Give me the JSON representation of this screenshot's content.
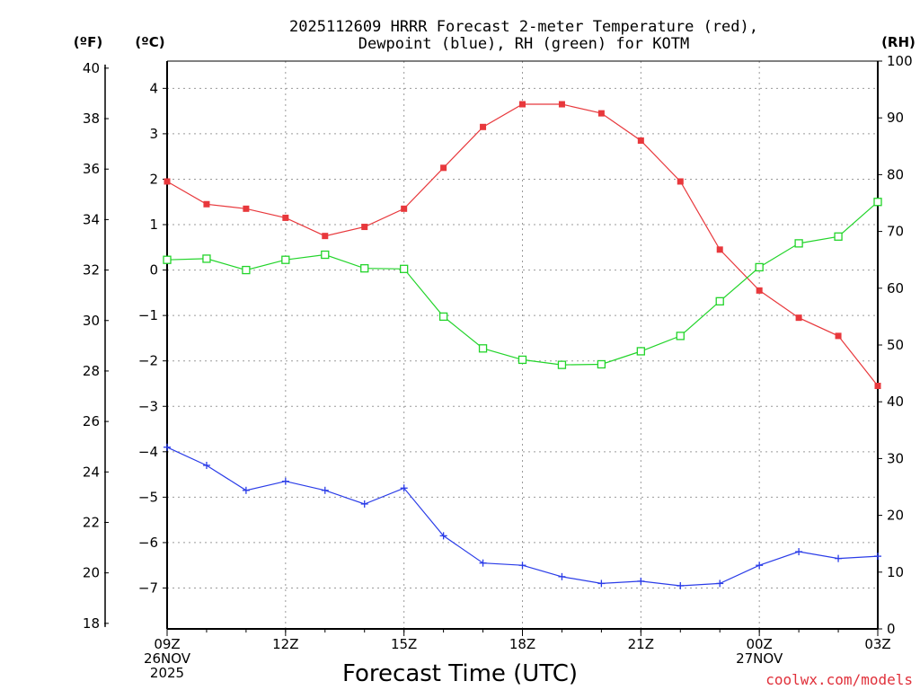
{
  "chart_data": {
    "type": "line",
    "title_lines": [
      "2025112609 HRRR Forecast 2-meter Temperature (red),",
      "Dewpoint (blue), RH (green) for KOTM"
    ],
    "units": {
      "fahrenheit": "(ºF)",
      "celsius": "(ºC)",
      "rh": "(RH)"
    },
    "xlabel": "Forecast Time (UTC)",
    "credit": "coolwx.com/models",
    "x_hours": [
      0,
      1,
      2,
      3,
      4,
      5,
      6,
      7,
      8,
      9,
      10,
      11,
      12,
      13,
      14,
      15,
      16,
      17,
      18
    ],
    "xlim": [
      0,
      18
    ],
    "x_ticks": [
      {
        "hour": 0,
        "lines": [
          "09Z",
          "26NOV",
          "2025"
        ]
      },
      {
        "hour": 3,
        "lines": [
          "12Z"
        ]
      },
      {
        "hour": 6,
        "lines": [
          "15Z"
        ]
      },
      {
        "hour": 9,
        "lines": [
          "18Z"
        ]
      },
      {
        "hour": 12,
        "lines": [
          "21Z"
        ]
      },
      {
        "hour": 15,
        "lines": [
          "00Z",
          "27NOV"
        ]
      },
      {
        "hour": 18,
        "lines": [
          "03Z"
        ]
      }
    ],
    "celsius_axis": {
      "ylim": [
        -7.9,
        4.6
      ],
      "ticks": [
        4,
        3,
        2,
        1,
        0,
        -1,
        -2,
        -3,
        -4,
        -5,
        -6,
        -7
      ]
    },
    "fahrenheit_axis": {
      "ylim": [
        17.78,
        40.28
      ],
      "ticks": [
        18,
        20,
        22,
        24,
        26,
        28,
        30,
        32,
        34,
        36,
        38,
        40
      ]
    },
    "rh_axis": {
      "ylim": [
        0,
        100
      ],
      "ticks": [
        0,
        10,
        20,
        30,
        40,
        50,
        60,
        70,
        80,
        90,
        100
      ]
    },
    "series": [
      {
        "name": "2-meter Temperature",
        "unit": "C",
        "color": "#e8383c",
        "marker": "filled-square",
        "values": [
          1.95,
          1.45,
          1.35,
          1.15,
          0.75,
          0.95,
          1.35,
          2.25,
          3.15,
          3.65,
          3.65,
          3.45,
          2.85,
          1.95,
          0.45,
          -0.45,
          -1.05,
          -1.45,
          -2.55
        ]
      },
      {
        "name": "Dewpoint",
        "unit": "C",
        "color": "#2a3ce8",
        "marker": "plus",
        "values": [
          -3.9,
          -4.3,
          -4.85,
          -4.65,
          -4.85,
          -5.15,
          -4.8,
          -5.85,
          -6.45,
          -6.5,
          -6.75,
          -6.9,
          -6.85,
          -6.95,
          -6.9,
          -6.5,
          -6.2,
          -6.35,
          -6.3
        ]
      },
      {
        "name": "RH",
        "unit": "%",
        "color": "#22d42a",
        "marker": "open-square",
        "values": [
          65,
          65.2,
          63.2,
          65,
          65.9,
          63.5,
          63.4,
          55,
          49.4,
          47.4,
          46.5,
          46.6,
          48.9,
          51.6,
          57.7,
          63.7,
          67.9,
          69.1,
          75.2
        ]
      }
    ]
  }
}
